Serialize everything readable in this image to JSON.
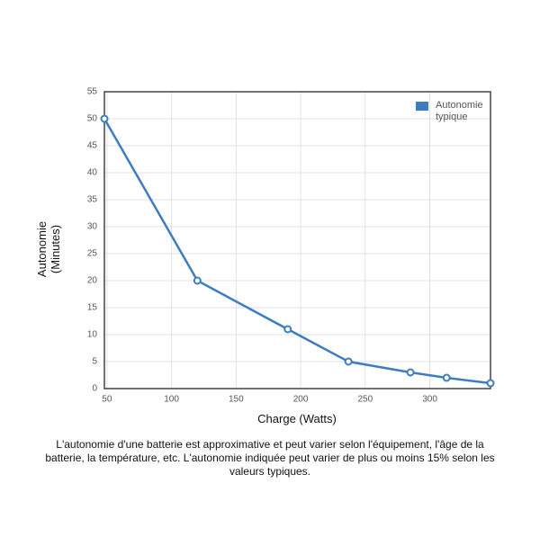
{
  "chart_data": {
    "type": "line",
    "x": [
      48,
      120,
      190,
      237,
      285,
      313,
      347
    ],
    "series": [
      {
        "name": "Autonomie typique",
        "color": "#3d7cc0",
        "values": [
          50,
          20,
          11,
          5,
          3,
          2,
          1
        ]
      }
    ],
    "xlim": [
      48,
      347
    ],
    "xticks": [
      50,
      100,
      150,
      200,
      250,
      300
    ],
    "ylim": [
      0,
      55
    ],
    "yticks": [
      0,
      5,
      10,
      15,
      20,
      25,
      30,
      35,
      40,
      45,
      50,
      55
    ],
    "xlabel": "Charge (Watts)",
    "ylabel": "Autonomie (Minutes)",
    "grid": true,
    "legend": "upper right",
    "caption": "L'autonomie d'une batterie est approximative et peut varier selon l'équipement, l'âge de la batterie, la température, etc. L'autonomie indiquée peut varier de plus ou moins 15% selon les valeurs typiques."
  }
}
